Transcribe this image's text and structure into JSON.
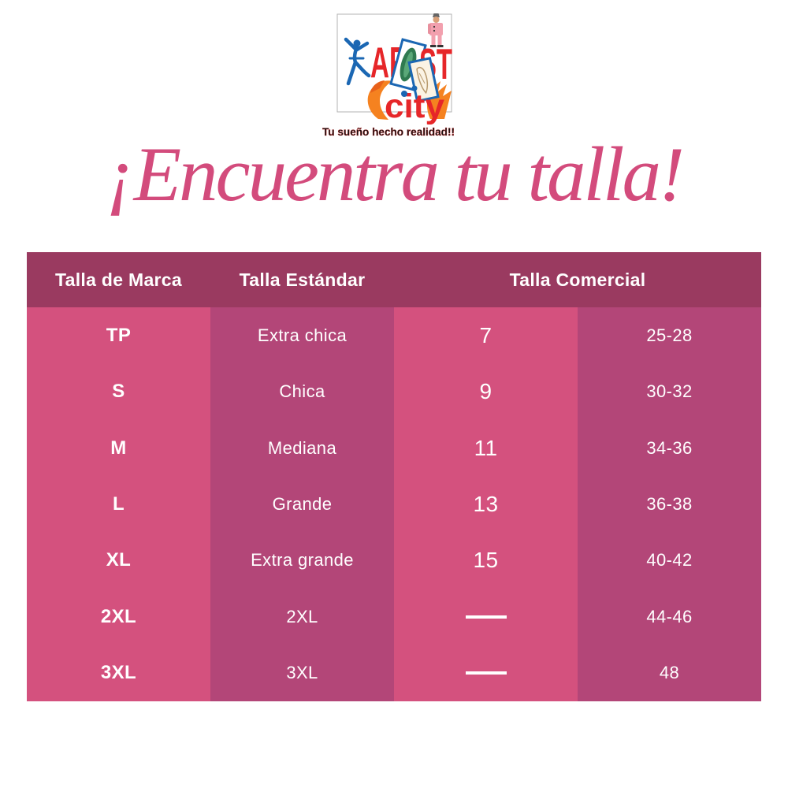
{
  "logo": {
    "brand_part1": "AR",
    "brand_hidden_letter": "T",
    "brand_part2": "ST",
    "brand_sub": "city",
    "tagline": "Tu sueño hecho realidad!!"
  },
  "title": "¡Encuentra tu talla!",
  "table": {
    "col_headers": [
      "Talla de Marca",
      "Talla Estándar",
      "Talla Comercial"
    ],
    "rows": [
      {
        "marca": "TP",
        "estandar": "Extra chica",
        "comercial_talla": "7",
        "comercial_rango": "25-28"
      },
      {
        "marca": "S",
        "estandar": "Chica",
        "comercial_talla": "9",
        "comercial_rango": "30-32"
      },
      {
        "marca": "M",
        "estandar": "Mediana",
        "comercial_talla": "11",
        "comercial_rango": "34-36"
      },
      {
        "marca": "L",
        "estandar": "Grande",
        "comercial_talla": "13",
        "comercial_rango": "36-38"
      },
      {
        "marca": "XL",
        "estandar": "Extra grande",
        "comercial_talla": "15",
        "comercial_rango": "40-42"
      },
      {
        "marca": "2XL",
        "estandar": "2XL",
        "comercial_talla": null,
        "comercial_rango": "44-46"
      },
      {
        "marca": "3XL",
        "estandar": "3XL",
        "comercial_talla": null,
        "comercial_rango": "48"
      }
    ]
  },
  "colors": {
    "title_pink": "#d34b7c",
    "header_bg": "#9a3a60",
    "column_bright": "#d4517e",
    "column_dark": "#b34678",
    "table_text": "#ffffff",
    "logo_red": "#e62629",
    "logo_blue": "#1b67b3",
    "logo_orange": "#f58220"
  },
  "chart_data": {
    "type": "table",
    "title": "¡Encuentra tu talla!",
    "columns": [
      "Talla de Marca",
      "Talla Estándar",
      "Talla Comercial (talla)",
      "Talla Comercial (rango)"
    ],
    "rows": [
      [
        "TP",
        "Extra chica",
        "7",
        "25-28"
      ],
      [
        "S",
        "Chica",
        "9",
        "30-32"
      ],
      [
        "M",
        "Mediana",
        "11",
        "34-36"
      ],
      [
        "L",
        "Grande",
        "13",
        "36-38"
      ],
      [
        "XL",
        "Extra grande",
        "15",
        "40-42"
      ],
      [
        "2XL",
        "2XL",
        "—",
        "44-46"
      ],
      [
        "3XL",
        "3XL",
        "—",
        "48"
      ]
    ],
    "layout": {
      "header_row": true,
      "grouped_header": "Talla Comercial spans last two columns",
      "grid": "none"
    }
  }
}
